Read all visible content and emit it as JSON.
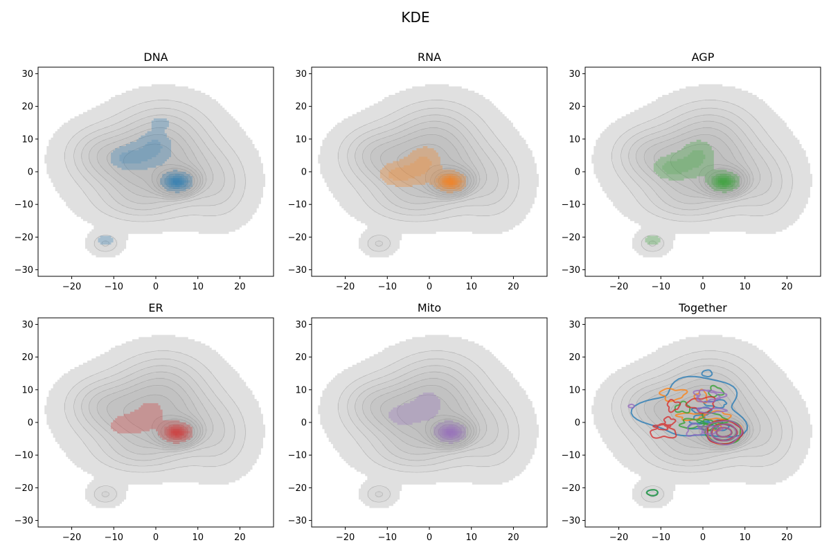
{
  "figure": {
    "title": "KDE"
  },
  "colors": {
    "background_fill": "#e0e0e0",
    "background_line": "#888888",
    "DNA": "#1f77b4",
    "RNA": "#ff7f0e",
    "AGP": "#2ca02c",
    "ER": "#d62728",
    "Mito": "#9467bd"
  },
  "chart_data": [
    {
      "type": "contour",
      "title": "DNA",
      "xlim": [
        -28,
        28
      ],
      "ylim": [
        -32,
        32
      ],
      "xticks": [
        -20,
        -10,
        0,
        10,
        20
      ],
      "yticks": [
        -30,
        -20,
        -10,
        0,
        10,
        20,
        30
      ],
      "tick_labels": {
        "x": [
          "−20",
          "−10",
          "0",
          "10",
          "20"
        ],
        "y": [
          "−30",
          "−20",
          "−10",
          "0",
          "10",
          "20",
          "30"
        ]
      },
      "series": [
        {
          "style": "filled",
          "color_key": "DNA",
          "regions": [
            {
              "kind": "blob",
              "center": [
                5,
                -3
              ],
              "level": "peak"
            },
            {
              "kind": "spread",
              "center": [
                -3,
                5
              ],
              "level": "low"
            },
            {
              "kind": "blob",
              "center": [
                1,
                15
              ],
              "level": "low"
            },
            {
              "kind": "blob",
              "center": [
                -12,
                -21
              ],
              "level": "low"
            }
          ]
        }
      ]
    },
    {
      "type": "contour",
      "title": "RNA",
      "xlim": [
        -28,
        28
      ],
      "ylim": [
        -32,
        32
      ],
      "xticks": [
        -20,
        -10,
        0,
        10,
        20
      ],
      "yticks": [
        -30,
        -20,
        -10,
        0,
        10,
        20,
        30
      ],
      "tick_labels": {
        "x": [
          "−20",
          "−10",
          "0",
          "10",
          "20"
        ],
        "y": [
          "−30",
          "−20",
          "−10",
          "0",
          "10",
          "20",
          "30"
        ]
      },
      "series": [
        {
          "style": "filled",
          "color_key": "RNA",
          "regions": [
            {
              "kind": "blob",
              "center": [
                5,
                -3
              ],
              "level": "peak"
            },
            {
              "kind": "spread",
              "center": [
                -4,
                0
              ],
              "level": "low"
            }
          ]
        }
      ]
    },
    {
      "type": "contour",
      "title": "AGP",
      "xlim": [
        -28,
        28
      ],
      "ylim": [
        -32,
        32
      ],
      "xticks": [
        -20,
        -10,
        0,
        10,
        20
      ],
      "yticks": [
        -30,
        -20,
        -10,
        0,
        10,
        20,
        30
      ],
      "tick_labels": {
        "x": [
          "−20",
          "−10",
          "0",
          "10",
          "20"
        ],
        "y": [
          "−30",
          "−20",
          "−10",
          "0",
          "10",
          "20",
          "30"
        ]
      },
      "series": [
        {
          "style": "filled",
          "color_key": "AGP",
          "regions": [
            {
              "kind": "blob",
              "center": [
                5,
                -3
              ],
              "level": "peak"
            },
            {
              "kind": "spread",
              "center": [
                -4,
                2
              ],
              "level": "low"
            },
            {
              "kind": "blob",
              "center": [
                -12,
                -21
              ],
              "level": "low"
            }
          ]
        }
      ]
    },
    {
      "type": "contour",
      "title": "ER",
      "xlim": [
        -28,
        28
      ],
      "ylim": [
        -32,
        32
      ],
      "xticks": [
        -20,
        -10,
        0,
        10,
        20
      ],
      "yticks": [
        -30,
        -20,
        -10,
        0,
        10,
        20,
        30
      ],
      "tick_labels": {
        "x": [
          "−20",
          "−10",
          "0",
          "10",
          "20"
        ],
        "y": [
          "−30",
          "−20",
          "−10",
          "0",
          "10",
          "20",
          "30"
        ]
      },
      "series": [
        {
          "style": "filled",
          "color_key": "ER",
          "regions": [
            {
              "kind": "blob",
              "center": [
                5,
                -3
              ],
              "level": "peak"
            },
            {
              "kind": "spread",
              "center": [
                -4,
                0
              ],
              "level": "faint"
            }
          ]
        }
      ]
    },
    {
      "type": "contour",
      "title": "Mito",
      "xlim": [
        -28,
        28
      ],
      "ylim": [
        -32,
        32
      ],
      "xticks": [
        -20,
        -10,
        0,
        10,
        20
      ],
      "yticks": [
        -30,
        -20,
        -10,
        0,
        10,
        20,
        30
      ],
      "tick_labels": {
        "x": [
          "−20",
          "−10",
          "0",
          "10",
          "20"
        ],
        "y": [
          "−30",
          "−20",
          "−10",
          "0",
          "10",
          "20",
          "30"
        ]
      },
      "series": [
        {
          "style": "filled",
          "color_key": "Mito",
          "regions": [
            {
              "kind": "blob",
              "center": [
                5,
                -3
              ],
              "level": "peak"
            },
            {
              "kind": "spread",
              "center": [
                -3,
                3
              ],
              "level": "faint"
            }
          ]
        }
      ]
    },
    {
      "type": "contour",
      "title": "Together",
      "xlim": [
        -28,
        28
      ],
      "ylim": [
        -32,
        32
      ],
      "xticks": [
        -20,
        -10,
        0,
        10,
        20
      ],
      "yticks": [
        -30,
        -20,
        -10,
        0,
        10,
        20,
        30
      ],
      "tick_labels": {
        "x": [
          "−20",
          "−10",
          "0",
          "10",
          "20"
        ],
        "y": [
          "−30",
          "−20",
          "−10",
          "0",
          "10",
          "20",
          "30"
        ]
      },
      "series": [
        {
          "style": "lines",
          "color_key": "DNA"
        },
        {
          "style": "lines",
          "color_key": "RNA"
        },
        {
          "style": "lines",
          "color_key": "AGP"
        },
        {
          "style": "lines",
          "color_key": "ER"
        },
        {
          "style": "lines",
          "color_key": "Mito"
        }
      ]
    }
  ]
}
